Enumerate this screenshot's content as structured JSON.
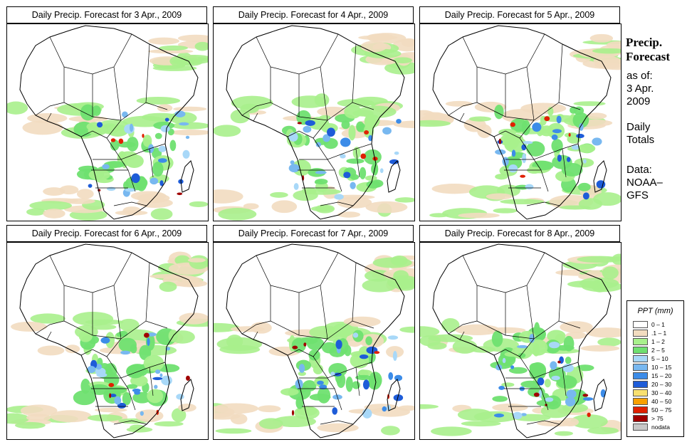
{
  "panels": [
    {
      "title": "Daily Precip. Forecast for  3 Apr., 2009"
    },
    {
      "title": "Daily Precip. Forecast for  4 Apr., 2009"
    },
    {
      "title": "Daily Precip. Forecast for  5 Apr., 2009"
    },
    {
      "title": "Daily Precip. Forecast for  6 Apr., 2009"
    },
    {
      "title": "Daily Precip. Forecast for  7 Apr., 2009"
    },
    {
      "title": "Daily Precip. Forecast for  8 Apr., 2009"
    }
  ],
  "sidebar": {
    "title_line1": "Precip.",
    "title_line2": "Forecast",
    "asof_label": "as of:",
    "asof_date_line1": "3 Apr.",
    "asof_date_line2": "2009",
    "totals_line1": "Daily",
    "totals_line2": "Totals",
    "source_line1": "Data:",
    "source_line2": "NOAA–",
    "source_line3": "GFS"
  },
  "legend": {
    "title": "PPT (mm)",
    "items": [
      {
        "label": "0 – 1",
        "color": "#ffffff"
      },
      {
        "label": ".1 – 1",
        "color": "#f2dcc0"
      },
      {
        "label": "1 – 2",
        "color": "#a8f08c"
      },
      {
        "label": "2 – 5",
        "color": "#6fe070"
      },
      {
        "label": "5 – 10",
        "color": "#a8d8f8"
      },
      {
        "label": "10 – 15",
        "color": "#78b8f0"
      },
      {
        "label": "15 – 20",
        "color": "#3c8ce8"
      },
      {
        "label": "20 – 30",
        "color": "#1e5cd8"
      },
      {
        "label": "30 – 40",
        "color": "#f8e070"
      },
      {
        "label": "40 – 50",
        "color": "#f8a000"
      },
      {
        "label": "50 – 75",
        "color": "#e02000"
      },
      {
        "label": "> 75",
        "color": "#a00000"
      },
      {
        "label": "nodata",
        "color": "#c8c8c8"
      }
    ]
  }
}
